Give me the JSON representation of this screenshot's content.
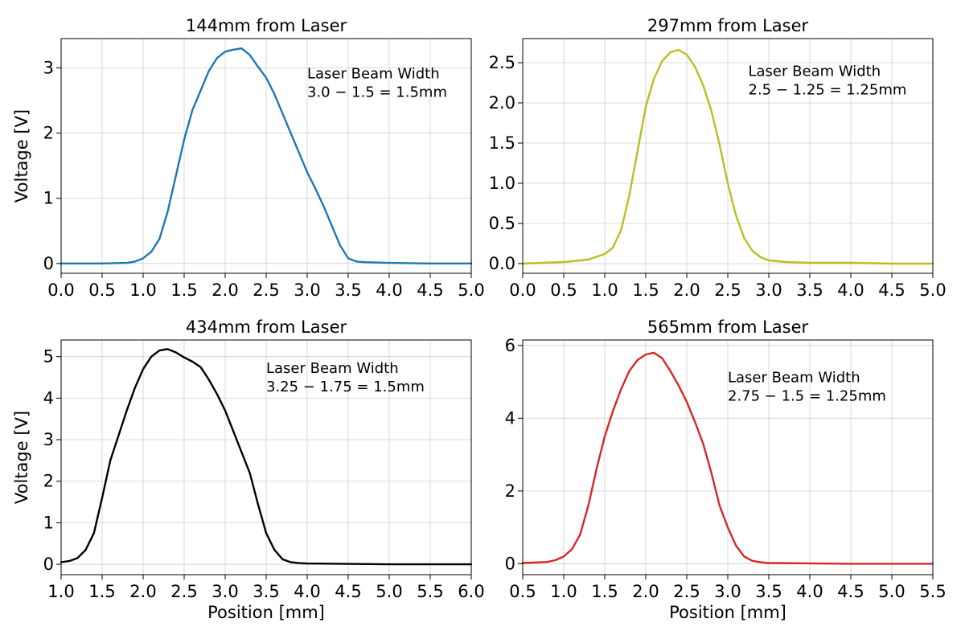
{
  "chart_data": [
    {
      "type": "line",
      "title": "144mm from Laser",
      "xlabel": "",
      "ylabel": "Voltage [V]",
      "xlim": [
        0.0,
        5.0
      ],
      "ylim": [
        -0.15,
        3.45
      ],
      "xticks": [
        0.0,
        0.5,
        1.0,
        1.5,
        2.0,
        2.5,
        3.0,
        3.5,
        4.0,
        4.5,
        5.0
      ],
      "xtick_labels": [
        "0.0",
        "0.5",
        "1.0",
        "1.5",
        "2.0",
        "2.5",
        "3.0",
        "3.5",
        "4.0",
        "4.5",
        "5.0"
      ],
      "yticks": [
        0,
        1,
        2,
        3
      ],
      "ytick_labels": [
        "0",
        "1",
        "2",
        "3"
      ],
      "grid": true,
      "color": "#1f77b4",
      "annotation": [
        "Laser Beam Width",
        "3.0 − 1.5 = 1.5mm"
      ],
      "series": [
        {
          "x": [
            0.0,
            0.5,
            0.8,
            0.9,
            1.0,
            1.1,
            1.2,
            1.3,
            1.4,
            1.5,
            1.6,
            1.7,
            1.8,
            1.9,
            2.0,
            2.1,
            2.2,
            2.3,
            2.4,
            2.5,
            2.6,
            2.7,
            2.8,
            2.9,
            3.0,
            3.1,
            3.2,
            3.3,
            3.4,
            3.5,
            3.6,
            3.7,
            4.0,
            4.5,
            5.0
          ],
          "y": [
            0.0,
            0.0,
            0.01,
            0.03,
            0.08,
            0.18,
            0.38,
            0.8,
            1.35,
            1.9,
            2.35,
            2.65,
            2.95,
            3.15,
            3.25,
            3.28,
            3.3,
            3.2,
            3.02,
            2.85,
            2.6,
            2.3,
            2.0,
            1.7,
            1.4,
            1.15,
            0.88,
            0.58,
            0.28,
            0.08,
            0.03,
            0.02,
            0.01,
            0.0,
            0.0
          ]
        }
      ]
    },
    {
      "type": "line",
      "title": "297mm from Laser",
      "xlabel": "",
      "ylabel": "",
      "xlim": [
        0.0,
        5.0
      ],
      "ylim": [
        -0.12,
        2.8
      ],
      "xticks": [
        0.0,
        0.5,
        1.0,
        1.5,
        2.0,
        2.5,
        3.0,
        3.5,
        4.0,
        4.5,
        5.0
      ],
      "xtick_labels": [
        "0.0",
        "0.5",
        "1.0",
        "1.5",
        "2.0",
        "2.5",
        "3.0",
        "3.5",
        "4.0",
        "4.5",
        "5.0"
      ],
      "yticks": [
        0.0,
        0.5,
        1.0,
        1.5,
        2.0,
        2.5
      ],
      "ytick_labels": [
        "0.0",
        "0.5",
        "1.0",
        "1.5",
        "2.0",
        "2.5"
      ],
      "grid": true,
      "color": "#bcbd22",
      "annotation": [
        "Laser Beam Width",
        "2.5 − 1.25 = 1.25mm"
      ],
      "series": [
        {
          "x": [
            0.0,
            0.5,
            0.8,
            1.0,
            1.1,
            1.2,
            1.3,
            1.4,
            1.5,
            1.6,
            1.7,
            1.8,
            1.9,
            2.0,
            2.1,
            2.2,
            2.3,
            2.4,
            2.5,
            2.6,
            2.7,
            2.8,
            2.9,
            3.0,
            3.2,
            3.5,
            4.0,
            4.5,
            5.0
          ],
          "y": [
            0.0,
            0.02,
            0.05,
            0.12,
            0.2,
            0.42,
            0.85,
            1.4,
            1.95,
            2.3,
            2.52,
            2.63,
            2.66,
            2.6,
            2.45,
            2.22,
            1.9,
            1.48,
            1.0,
            0.6,
            0.32,
            0.16,
            0.08,
            0.04,
            0.02,
            0.01,
            0.01,
            0.0,
            0.0
          ]
        }
      ]
    },
    {
      "type": "line",
      "title": "434mm from Laser",
      "xlabel": "Position [mm]",
      "ylabel": "Voltage [V]",
      "xlim": [
        1.0,
        6.0
      ],
      "ylim": [
        -0.25,
        5.4
      ],
      "xticks": [
        1.0,
        1.5,
        2.0,
        2.5,
        3.0,
        3.5,
        4.0,
        4.5,
        5.0,
        5.5,
        6.0
      ],
      "xtick_labels": [
        "1.0",
        "1.5",
        "2.0",
        "2.5",
        "3.0",
        "3.5",
        "4.0",
        "4.5",
        "5.0",
        "5.5",
        "6.0"
      ],
      "yticks": [
        0,
        1,
        2,
        3,
        4,
        5
      ],
      "ytick_labels": [
        "0",
        "1",
        "2",
        "3",
        "4",
        "5"
      ],
      "grid": true,
      "color": "#000000",
      "annotation": [
        "Laser Beam Width",
        "3.25 − 1.75 = 1.5mm"
      ],
      "series": [
        {
          "x": [
            1.0,
            1.1,
            1.2,
            1.3,
            1.4,
            1.5,
            1.6,
            1.7,
            1.8,
            1.9,
            2.0,
            2.1,
            2.2,
            2.3,
            2.4,
            2.5,
            2.6,
            2.7,
            2.8,
            2.9,
            3.0,
            3.1,
            3.2,
            3.3,
            3.4,
            3.5,
            3.6,
            3.7,
            3.8,
            3.9,
            4.0,
            4.5,
            5.0,
            5.5,
            6.0
          ],
          "y": [
            0.05,
            0.08,
            0.15,
            0.35,
            0.75,
            1.6,
            2.5,
            3.1,
            3.7,
            4.25,
            4.7,
            5.0,
            5.15,
            5.18,
            5.1,
            4.98,
            4.88,
            4.75,
            4.45,
            4.1,
            3.7,
            3.2,
            2.7,
            2.2,
            1.45,
            0.75,
            0.35,
            0.12,
            0.05,
            0.03,
            0.02,
            0.01,
            0.0,
            0.0,
            0.0
          ]
        }
      ]
    },
    {
      "type": "line",
      "title": "565mm from Laser",
      "xlabel": "Position [mm]",
      "ylabel": "",
      "xlim": [
        0.5,
        5.5
      ],
      "ylim": [
        -0.3,
        6.15
      ],
      "xticks": [
        0.5,
        1.0,
        1.5,
        2.0,
        2.5,
        3.0,
        3.5,
        4.0,
        4.5,
        5.0,
        5.5
      ],
      "xtick_labels": [
        "0.5",
        "1.0",
        "1.5",
        "2.0",
        "2.5",
        "3.0",
        "3.5",
        "4.0",
        "4.5",
        "5.0",
        "5.5"
      ],
      "yticks": [
        0,
        2,
        4,
        6
      ],
      "ytick_labels": [
        "0",
        "2",
        "4",
        "6"
      ],
      "grid": true,
      "color": "#d62728",
      "annotation": [
        "Laser Beam Width",
        "2.75 − 1.5 = 1.25mm"
      ],
      "series": [
        {
          "x": [
            0.5,
            0.8,
            0.9,
            1.0,
            1.1,
            1.2,
            1.3,
            1.4,
            1.5,
            1.6,
            1.7,
            1.8,
            1.9,
            2.0,
            2.1,
            2.2,
            2.3,
            2.4,
            2.5,
            2.6,
            2.7,
            2.8,
            2.9,
            3.0,
            3.1,
            3.2,
            3.3,
            3.4,
            3.5,
            4.0,
            4.5,
            5.0,
            5.5
          ],
          "y": [
            0.02,
            0.05,
            0.1,
            0.2,
            0.4,
            0.8,
            1.6,
            2.6,
            3.5,
            4.2,
            4.8,
            5.3,
            5.6,
            5.75,
            5.8,
            5.65,
            5.3,
            4.9,
            4.45,
            3.9,
            3.3,
            2.5,
            1.6,
            1.0,
            0.5,
            0.2,
            0.08,
            0.04,
            0.02,
            0.01,
            0.0,
            0.0,
            0.0
          ]
        }
      ]
    }
  ]
}
